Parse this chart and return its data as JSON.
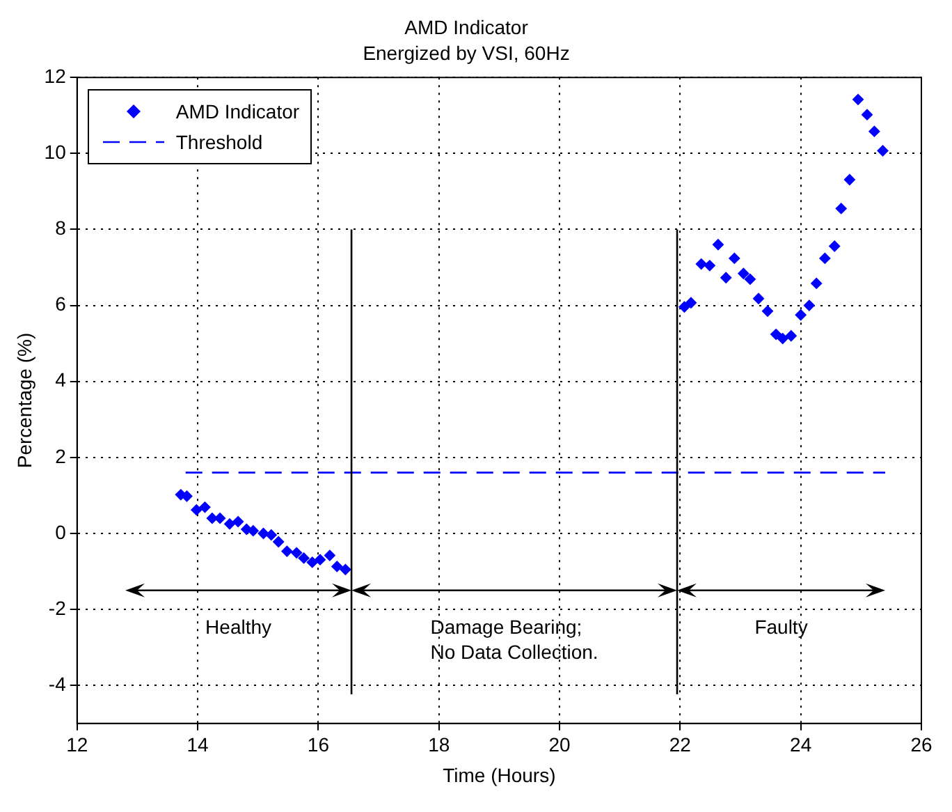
{
  "chart_data": {
    "type": "scatter",
    "title": "AMD Indicator",
    "subtitle": "Energized by VSI, 60Hz",
    "xlabel": "Time (Hours)",
    "ylabel": "Percentage (%)",
    "xlim": [
      12,
      26
    ],
    "xticks": [
      12,
      14,
      16,
      18,
      20,
      22,
      24,
      26
    ],
    "ylim": [
      -5,
      12
    ],
    "yticks": [
      -4,
      -2,
      0,
      2,
      4,
      6,
      8,
      10,
      12
    ],
    "grid": true,
    "legend": "top left",
    "marker": "diamond",
    "series": [
      {
        "name": "AMD Indicator",
        "color": "#0000ff",
        "x": [
          13.72,
          13.82,
          13.98,
          14.12,
          14.24,
          14.37,
          14.53,
          14.67,
          14.81,
          14.92,
          15.09,
          15.22,
          15.34,
          15.48,
          15.64,
          15.76,
          15.9,
          16.03,
          16.19,
          16.31,
          16.45,
          22.07,
          22.18,
          22.35,
          22.49,
          22.63,
          22.76,
          22.9,
          23.05,
          23.16,
          23.3,
          23.45,
          23.59,
          23.7,
          23.84,
          24.0,
          24.14,
          24.26,
          24.4,
          24.56,
          24.67,
          24.81,
          24.95,
          25.1,
          25.22,
          25.36
        ],
        "values": [
          1.02,
          0.98,
          0.62,
          0.69,
          0.4,
          0.4,
          0.25,
          0.31,
          0.11,
          0.07,
          0,
          -0.04,
          -0.22,
          -0.47,
          -0.51,
          -0.65,
          -0.76,
          -0.69,
          -0.58,
          -0.87,
          -0.95,
          5.96,
          6.07,
          7.09,
          7.05,
          7.6,
          6.73,
          7.24,
          6.84,
          6.69,
          6.18,
          5.85,
          5.24,
          5.13,
          5.2,
          5.75,
          6.0,
          6.58,
          7.24,
          7.56,
          8.55,
          9.31,
          11.42,
          11.02,
          10.58,
          10.07
        ]
      },
      {
        "name": "Threshold",
        "type": "line",
        "color": "#0000ff",
        "line_style": "dashed",
        "marker": "none",
        "x": [
          13.8,
          25.4
        ],
        "values": [
          1.6,
          1.6
        ]
      }
    ],
    "ref_lines": [
      {
        "axis": "x",
        "value": 16.55,
        "color": "#000000"
      },
      {
        "axis": "x",
        "value": 21.95,
        "color": "#000000"
      }
    ],
    "annotations": [
      "Healthy",
      "Damage Bearing;\nNo Data Collection.",
      "Faulty"
    ]
  }
}
